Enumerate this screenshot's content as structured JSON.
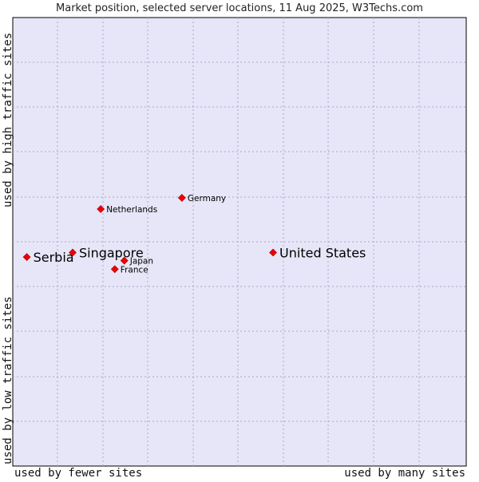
{
  "chart_data": {
    "type": "scatter",
    "title": "Market position, selected server locations, 11 Aug 2025, W3Techs.com",
    "xlabel_low": "used by fewer sites",
    "xlabel_high": "used by many sites",
    "ylabel_low": "used by low traffic sites",
    "ylabel_high": "used by high traffic sites",
    "xlim": [
      0,
      100
    ],
    "ylim": [
      0,
      100
    ],
    "grid": true,
    "points": [
      {
        "label": "United States",
        "x": 57.4,
        "y": 47.6,
        "emphasis": true
      },
      {
        "label": "Germany",
        "x": 37.3,
        "y": 59.8,
        "emphasis": false
      },
      {
        "label": "Netherlands",
        "x": 19.4,
        "y": 57.3,
        "emphasis": false
      },
      {
        "label": "Singapore",
        "x": 13.2,
        "y": 47.6,
        "emphasis": true
      },
      {
        "label": "Serbia",
        "x": 3.1,
        "y": 46.6,
        "emphasis": true
      },
      {
        "label": "Japan",
        "x": 24.6,
        "y": 45.8,
        "emphasis": false
      },
      {
        "label": "France",
        "x": 22.5,
        "y": 43.9,
        "emphasis": false
      }
    ]
  },
  "colors": {
    "plot_bg": "#e6e6f8",
    "grid": "#a8a8c8",
    "marker": "#ee0000",
    "border": "#000000"
  }
}
